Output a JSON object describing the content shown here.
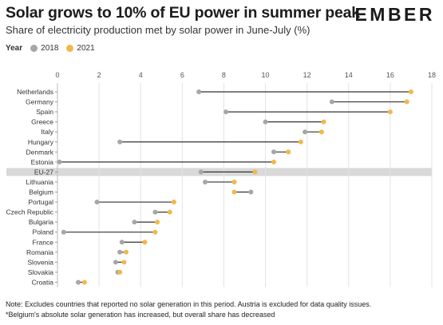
{
  "header": {
    "title": "Solar grows to 10% of EU power in summer peak",
    "subtitle": "Share of electricity production met by solar power in June-July (%)",
    "logo": "EMBER"
  },
  "legend": {
    "title": "Year",
    "items": [
      {
        "label": "2018",
        "color": "#a6a6a6"
      },
      {
        "label": "2021",
        "color": "#f0b94a"
      }
    ]
  },
  "notes": {
    "line1": "Note: Excludes countries that reported no solar generation in this period. Austria is excluded for data quality issues.",
    "line2": "*Belgium's absolute solar generation has increased, but overall share has decreased"
  },
  "colors": {
    "y2018": "#a6a6a6",
    "y2021": "#f0b94a",
    "connector": "#333333",
    "highlight_band": "#d9d9d9",
    "grid": "#e3e3e3"
  },
  "chart_data": {
    "type": "dumbbell",
    "title": "Solar grows to 10% of EU power in summer peak",
    "subtitle": "Share of electricity production met by solar power in June-July (%)",
    "xlim": [
      0,
      18
    ],
    "xticks": [
      0,
      2,
      4,
      6,
      8,
      10,
      12,
      14,
      16,
      18
    ],
    "grid": true,
    "legend_position": "top-left",
    "highlight_category": "EU-27",
    "categories": [
      "Netherlands",
      "Germany",
      "Spain",
      "Greece",
      "Italy",
      "Hungary",
      "Denmark",
      "Estonia",
      "EU-27",
      "Lithuania",
      "Belgium",
      "Portugal",
      "Czech Republic",
      "Bulgaria",
      "Poland",
      "France",
      "Romania",
      "Slovenia",
      "Slovakia",
      "Croatia"
    ],
    "series": [
      {
        "name": "2018",
        "values": [
          6.8,
          13.2,
          8.1,
          10.0,
          11.9,
          3.0,
          10.4,
          0.1,
          6.9,
          7.1,
          9.3,
          1.9,
          4.7,
          3.7,
          0.3,
          3.1,
          3.0,
          2.8,
          2.9,
          1.0
        ]
      },
      {
        "name": "2021",
        "values": [
          17.0,
          16.8,
          16.0,
          12.8,
          12.7,
          11.7,
          11.1,
          10.4,
          9.5,
          8.5,
          8.5,
          5.6,
          5.4,
          4.8,
          4.7,
          4.2,
          3.3,
          3.2,
          3.0,
          1.3
        ]
      }
    ]
  }
}
